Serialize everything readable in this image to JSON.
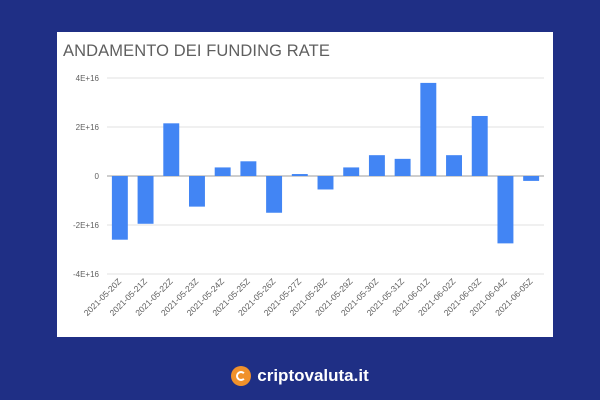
{
  "chart_data": {
    "type": "bar",
    "title": "ANDAMENTO DEI FUNDING RATE",
    "xlabel": "",
    "ylabel": "",
    "ylim": [
      -40000000000000000,
      40000000000000000
    ],
    "yticks": [
      {
        "value": 40000000000000000,
        "label": "4E+16"
      },
      {
        "value": 20000000000000000,
        "label": "2E+16"
      },
      {
        "value": 0,
        "label": "0"
      },
      {
        "value": -20000000000000000,
        "label": "-2E+16"
      },
      {
        "value": -40000000000000000,
        "label": "-4E+16"
      }
    ],
    "categories": [
      "2021-05-20Z",
      "2021-05-21Z",
      "2021-05-22Z",
      "2021-05-23Z",
      "2021-05-24Z",
      "2021-05-25Z",
      "2021-05-26Z",
      "2021-05-27Z",
      "2021-05-28Z",
      "2021-05-29Z",
      "2021-05-30Z",
      "2021-05-31Z",
      "2021-06-01Z",
      "2021-06-02Z",
      "2021-06-03Z",
      "2021-06-04Z",
      "2021-06-05Z"
    ],
    "values": [
      -26000000000000000,
      -19500000000000000,
      21500000000000000,
      -12500000000000000,
      3500000000000000,
      6000000000000000,
      -15000000000000000,
      800000000000000,
      -5500000000000000,
      3500000000000000,
      8500000000000000,
      7000000000000000,
      38000000000000000,
      8500000000000000,
      24500000000000000,
      -27500000000000000,
      -2000000000000000
    ],
    "bar_color": "#4285f4",
    "grid": true,
    "legend": "none"
  },
  "footer": {
    "brand": "criptovaluta.it",
    "icon": "bitcoin-coin-icon",
    "icon_color": "#f0912b"
  },
  "colors": {
    "background": "#1f2f85",
    "card": "#ffffff",
    "gridline": "#e0e0e0",
    "text": "#5f5f5f"
  }
}
